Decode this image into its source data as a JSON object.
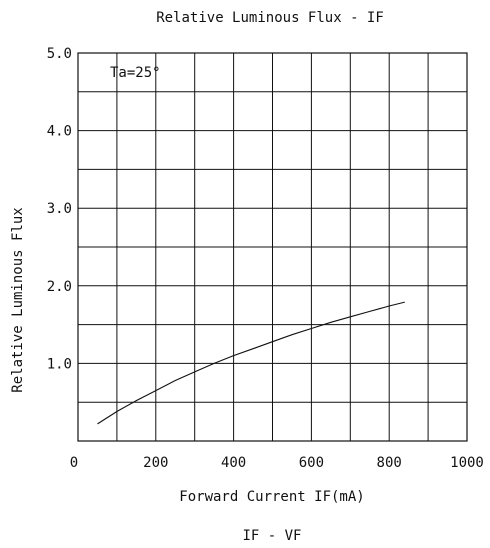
{
  "chart_data": {
    "type": "line",
    "title": "Relative Luminous Flux - IF",
    "xlabel": "Forward Current IF(mA)",
    "ylabel": "Relative Luminous Flux",
    "xlim": [
      0,
      1000
    ],
    "ylim": [
      0,
      5.0
    ],
    "x_ticks": [
      "0",
      "200",
      "400",
      "600",
      "800",
      "1000"
    ],
    "x_tick_values": [
      0,
      200,
      400,
      600,
      800,
      1000
    ],
    "y_ticks": [
      "1.0",
      "2.0",
      "3.0",
      "4.0",
      "5.0"
    ],
    "y_tick_values": [
      1.0,
      2.0,
      3.0,
      4.0,
      5.0
    ],
    "grid": true,
    "annotation": "Ta=25°",
    "caption": "IF - VF",
    "series": [
      {
        "x": [
          50,
          100,
          150,
          200,
          250,
          300,
          350,
          400,
          450,
          500,
          550,
          600,
          650,
          700,
          750,
          800,
          840
        ],
        "y": [
          0.22,
          0.38,
          0.52,
          0.65,
          0.78,
          0.89,
          1.0,
          1.1,
          1.19,
          1.28,
          1.37,
          1.45,
          1.53,
          1.6,
          1.67,
          1.74,
          1.79
        ]
      }
    ]
  }
}
